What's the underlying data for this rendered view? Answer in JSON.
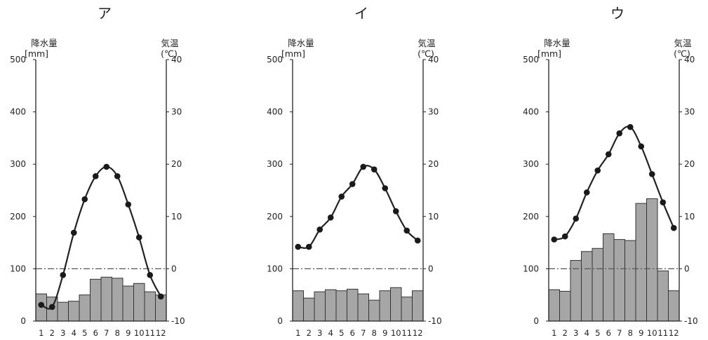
{
  "chart_data": [
    {
      "type": "bar+line",
      "title": "ア",
      "left_axis_label": "降水量",
      "left_axis_unit": "[mm]",
      "right_axis_label": "気温",
      "right_axis_unit": "(℃)",
      "precip_range": [
        0,
        500
      ],
      "temp_range": [
        -10,
        40
      ],
      "precip_ticks": [
        "0",
        "100",
        "200",
        "300",
        "400",
        "500"
      ],
      "temp_ticks": [
        "-10",
        "0",
        "10",
        "20",
        "30",
        "40"
      ],
      "months": [
        "1",
        "2",
        "3",
        "4",
        "5",
        "6",
        "7",
        "8",
        "9",
        "10",
        "11",
        "12"
      ],
      "precipitation": [
        52,
        46,
        36,
        38,
        50,
        80,
        84,
        82,
        67,
        72,
        56,
        50
      ],
      "temperature": [
        -6.9,
        -7.3,
        -1.2,
        6.9,
        13.3,
        17.7,
        19.5,
        17.7,
        12.3,
        6.0,
        -1.2,
        -5.3
      ]
    },
    {
      "type": "bar+line",
      "title": "イ",
      "left_axis_label": "降水量",
      "left_axis_unit": "[mm]",
      "right_axis_label": "気温",
      "right_axis_unit": "(℃)",
      "precip_range": [
        0,
        500
      ],
      "temp_range": [
        -10,
        40
      ],
      "precip_ticks": [
        "0",
        "100",
        "200",
        "300",
        "400",
        "500"
      ],
      "temp_ticks": [
        "-10",
        "0",
        "10",
        "20",
        "30",
        "40"
      ],
      "months": [
        "1",
        "2",
        "3",
        "4",
        "5",
        "6",
        "7",
        "8",
        "9",
        "10",
        "11",
        "12"
      ],
      "precipitation": [
        58,
        44,
        56,
        60,
        58,
        61,
        52,
        40,
        58,
        64,
        46,
        58
      ],
      "temperature": [
        4.2,
        4.2,
        7.5,
        9.8,
        13.8,
        16.2,
        19.5,
        19.0,
        15.4,
        11.0,
        7.3,
        5.4
      ]
    },
    {
      "type": "bar+line",
      "title": "ウ",
      "left_axis_label": "降水量",
      "left_axis_unit": "[mm]",
      "right_axis_label": "気温",
      "right_axis_unit": "(℃)",
      "precip_range": [
        0,
        500
      ],
      "temp_range": [
        -10,
        40
      ],
      "precip_ticks": [
        "0",
        "100",
        "200",
        "300",
        "400",
        "500"
      ],
      "temp_ticks": [
        "-10",
        "0",
        "10",
        "20",
        "30",
        "40"
      ],
      "months": [
        "1",
        "2",
        "3",
        "4",
        "5",
        "6",
        "7",
        "8",
        "9",
        "10",
        "11",
        "12"
      ],
      "precipitation": [
        60,
        57,
        116,
        133,
        139,
        167,
        156,
        154,
        225,
        234,
        96,
        58
      ],
      "temperature": [
        5.6,
        6.2,
        9.6,
        14.6,
        18.8,
        21.9,
        25.9,
        27.1,
        23.4,
        18.1,
        12.7,
        7.8
      ]
    }
  ]
}
